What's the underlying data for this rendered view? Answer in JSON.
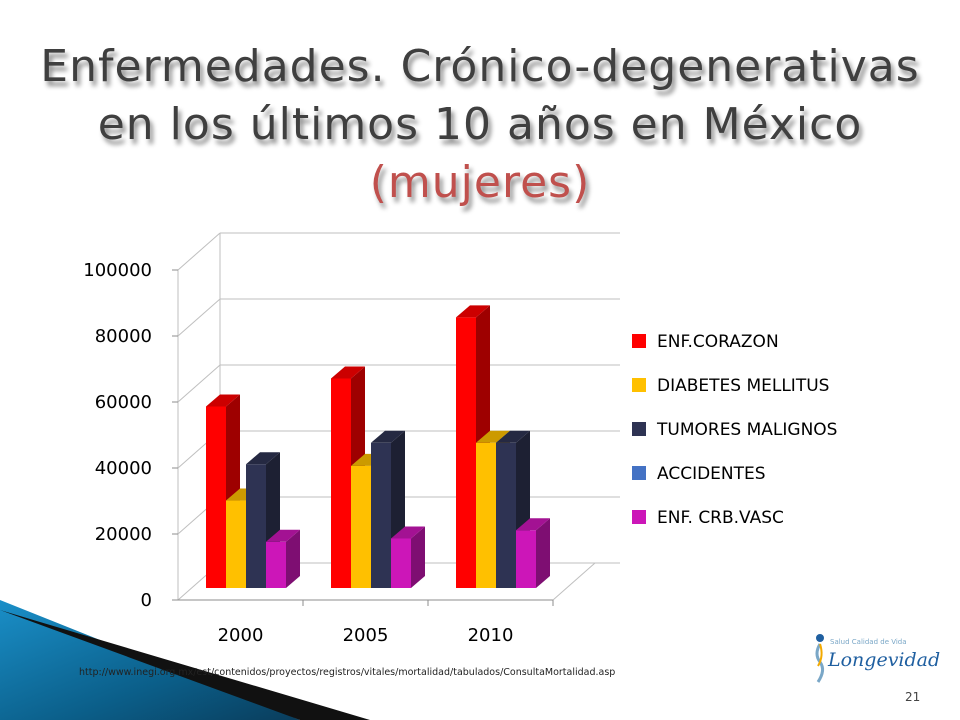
{
  "slide": {
    "title_main": "Enfermedades. Crónico-degenerativas en los últimos 10 años en México ",
    "title_accent": "(mujeres)",
    "source_text": "http://www.inegi.org.mx/est/contenidos/proyectos/registros/vitales/mortalidad/tabulados/ConsultaMortalidad.asp",
    "page_number": "21",
    "logo_small": "Salud Calidad de Vida",
    "logo_big": "Longevidad"
  },
  "chart_data": {
    "type": "bar",
    "title": "",
    "categories": [
      "2000",
      "2005",
      "2010"
    ],
    "series": [
      {
        "name": "ENF.CORAZON",
        "values": [
          55000,
          63500,
          82000
        ],
        "color": "#ff0000"
      },
      {
        "name": "DIABETES MELLITUS",
        "values": [
          26500,
          37000,
          44000
        ],
        "color": "#ffc000"
      },
      {
        "name": "TUMORES MALIGNOS",
        "values": [
          37500,
          44000,
          44000
        ],
        "color": "#2e3353"
      },
      {
        "name": "ACCIDENTES",
        "values": [
          0,
          0,
          0
        ],
        "color": "#4472c4"
      },
      {
        "name": "ENF. CRB.VASC",
        "values": [
          14000,
          15000,
          17500
        ],
        "color": "#cc16b8"
      }
    ],
    "yticks": [
      "0",
      "20000",
      "40000",
      "60000",
      "80000",
      "100000"
    ],
    "ylim": [
      0,
      100000
    ],
    "legend_position": "right",
    "grid": true
  }
}
